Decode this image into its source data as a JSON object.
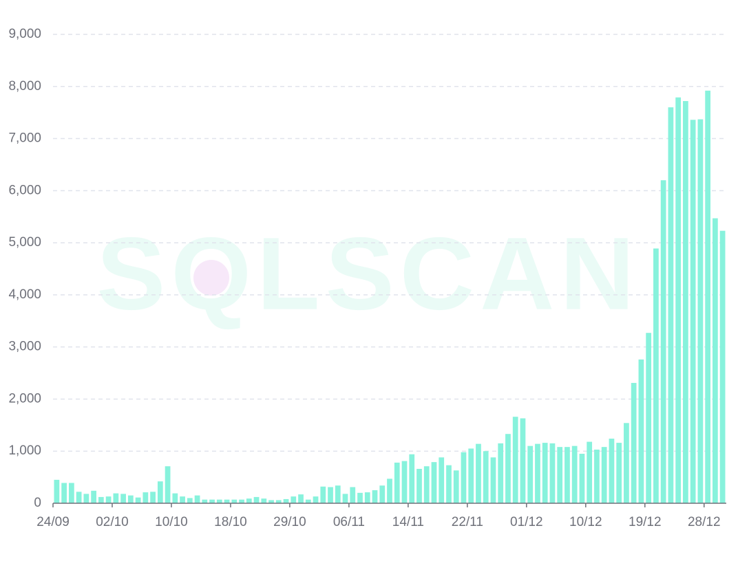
{
  "chart_data": {
    "type": "bar",
    "watermark": "SQLSCAN",
    "categories": [
      "24/09",
      null,
      null,
      null,
      null,
      null,
      null,
      null,
      "02/10",
      null,
      null,
      null,
      null,
      null,
      null,
      null,
      "10/10",
      null,
      null,
      null,
      null,
      null,
      null,
      null,
      "18/10",
      null,
      null,
      null,
      null,
      null,
      null,
      null,
      "29/10",
      null,
      null,
      null,
      null,
      null,
      null,
      null,
      "06/11",
      null,
      null,
      null,
      null,
      null,
      null,
      null,
      "14/11",
      null,
      null,
      null,
      null,
      null,
      null,
      null,
      "22/11",
      null,
      null,
      null,
      null,
      null,
      null,
      null,
      "01/12",
      null,
      null,
      null,
      null,
      null,
      null,
      null,
      "10/12",
      null,
      null,
      null,
      null,
      null,
      null,
      null,
      "19/12",
      null,
      null,
      null,
      null,
      null,
      null,
      null,
      "28/12",
      null,
      null
    ],
    "values": [
      450,
      390,
      390,
      220,
      180,
      240,
      120,
      130,
      190,
      180,
      150,
      110,
      210,
      220,
      420,
      710,
      190,
      130,
      100,
      150,
      70,
      70,
      70,
      70,
      70,
      70,
      90,
      120,
      90,
      60,
      60,
      80,
      130,
      170,
      70,
      130,
      320,
      310,
      340,
      180,
      310,
      200,
      210,
      250,
      340,
      470,
      780,
      810,
      940,
      660,
      710,
      790,
      880,
      730,
      630,
      980,
      1050,
      1140,
      1000,
      880,
      1150,
      1330,
      1660,
      1630,
      1100,
      1140,
      1160,
      1150,
      1080,
      1080,
      1100,
      950,
      1180,
      1030,
      1080,
      1240,
      1160,
      1540,
      2310,
      2760,
      3270,
      4890,
      6200,
      7600,
      7790,
      7720,
      7360,
      7370,
      7920,
      5470,
      5230
    ],
    "color": "#87f2dc",
    "ylim": [
      0,
      9000
    ],
    "yticks": [
      0,
      {
        "value": 1000,
        "label": "1,000"
      },
      {
        "value": 2000,
        "label": "2,000"
      },
      {
        "value": 3000,
        "label": "3,000"
      },
      {
        "value": 4000,
        "label": "4,000"
      },
      {
        "value": 5000,
        "label": "5,000"
      },
      {
        "value": 6000,
        "label": "6,000"
      },
      {
        "value": 7000,
        "label": "7,000"
      },
      {
        "value": 8000,
        "label": "8,000"
      },
      {
        "value": 9000,
        "label": "9,000"
      }
    ],
    "grid": true
  }
}
